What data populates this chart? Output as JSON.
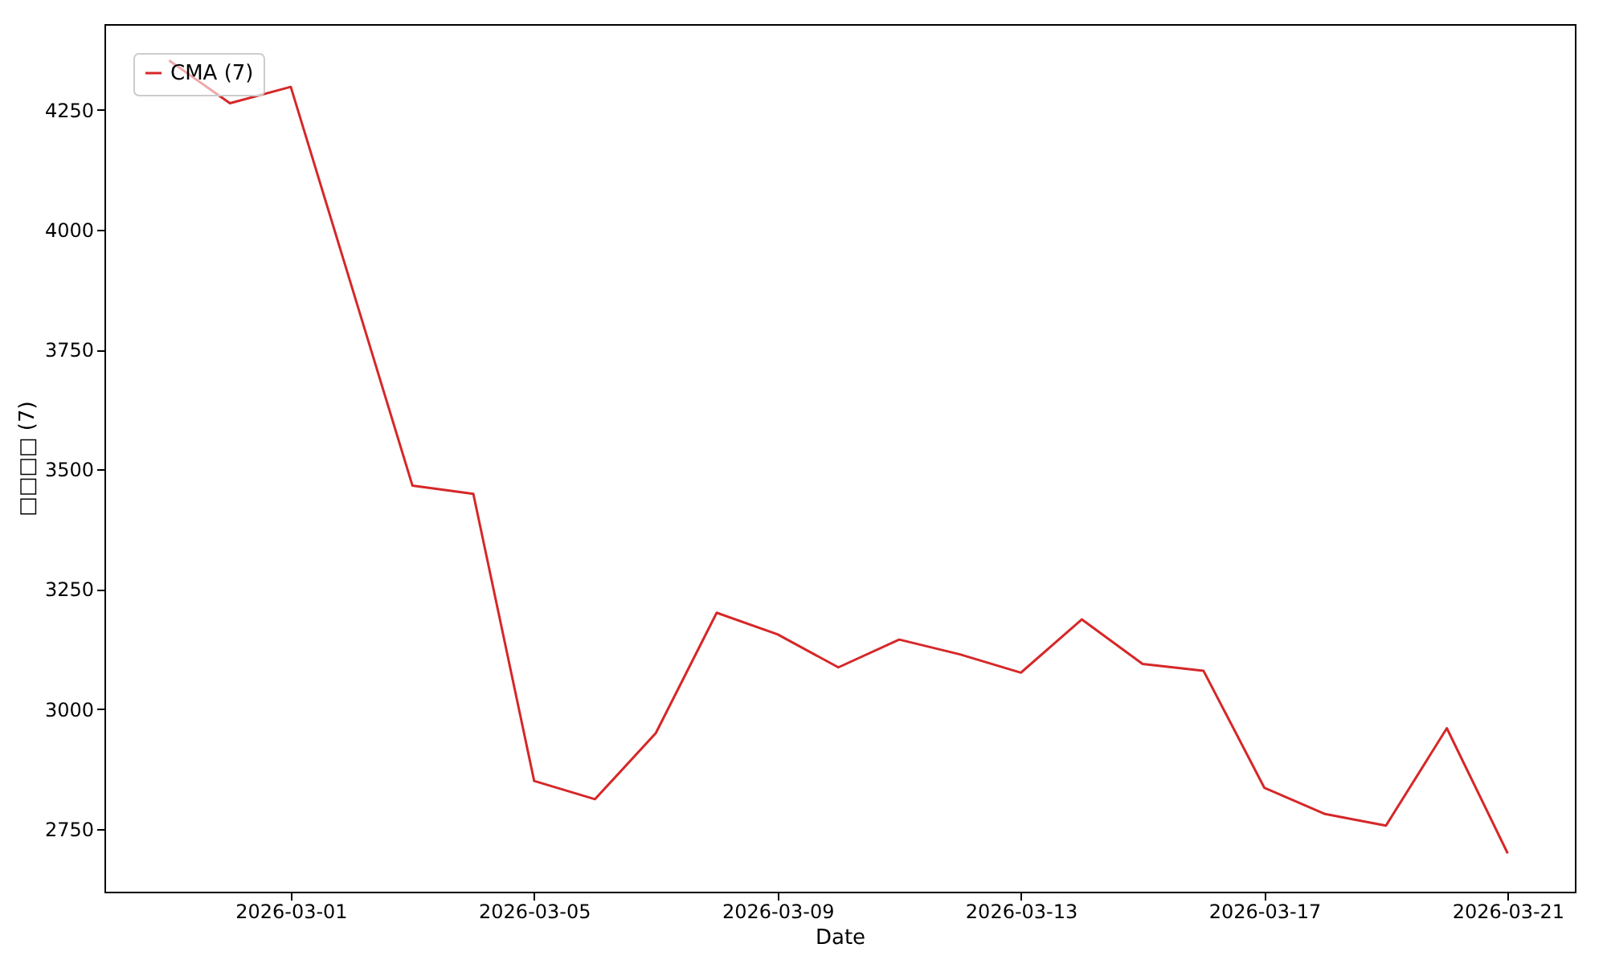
{
  "chart_data": {
    "type": "line",
    "xlabel": "Date",
    "ylabel": "□□□□ (7)",
    "x": [
      "2026-02-27",
      "2026-02-28",
      "2026-03-01",
      "2026-03-02",
      "2026-03-03",
      "2026-03-04",
      "2026-03-05",
      "2026-03-06",
      "2026-03-07",
      "2026-03-08",
      "2026-03-09",
      "2026-03-10",
      "2026-03-11",
      "2026-03-12",
      "2026-03-13",
      "2026-03-14",
      "2026-03-15",
      "2026-03-16",
      "2026-03-17",
      "2026-03-18",
      "2026-03-19",
      "2026-03-20",
      "2026-03-21"
    ],
    "series": [
      {
        "name": "CMA (7)",
        "color": "#d62728",
        "values": [
          4353,
          4264,
          4298,
          3882,
          3466,
          3449,
          2850,
          2812,
          2950,
          3201,
          3156,
          3087,
          3145,
          3114,
          3076,
          3187,
          3094,
          3080,
          2836,
          2781,
          2757,
          2960,
          2699
        ]
      }
    ],
    "xlim": [
      "2026-02-25T22:30",
      "2026-03-22T02:30"
    ],
    "xticks": [
      "2026-03-01",
      "2026-03-05",
      "2026-03-09",
      "2026-03-13",
      "2026-03-17",
      "2026-03-21"
    ],
    "ylim": [
      2619,
      4429
    ],
    "yticks": [
      2750,
      3000,
      3250,
      3500,
      3750,
      4000,
      4250
    ],
    "legend": "top left",
    "grid": false,
    "line_style": "solid",
    "marker": "none"
  }
}
